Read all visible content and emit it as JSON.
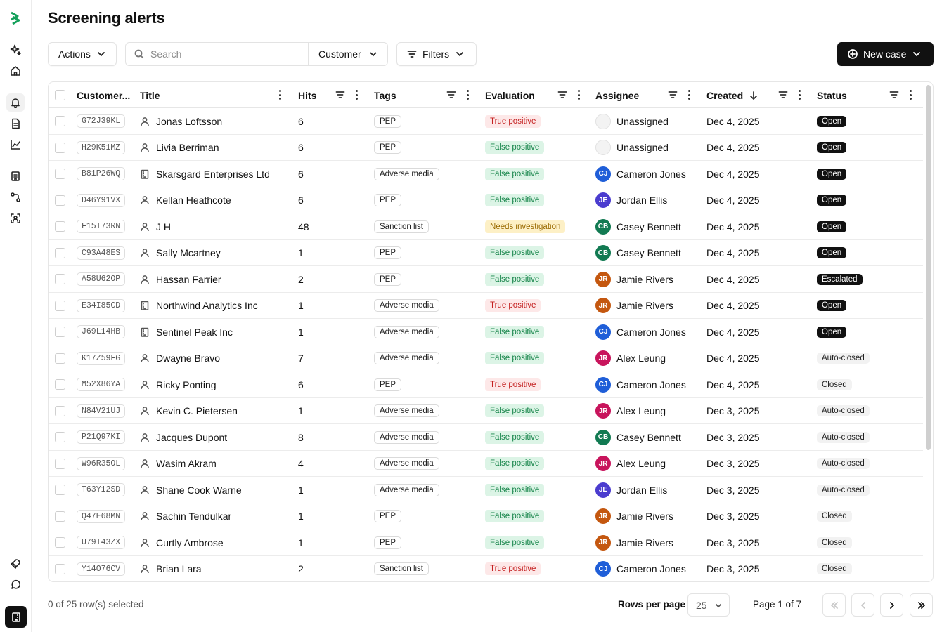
{
  "page": {
    "title": "Screening alerts"
  },
  "toolbar": {
    "actions_label": "Actions",
    "search_placeholder": "Search",
    "search_value": "",
    "customer_label": "Customer",
    "filters_label": "Filters",
    "new_case_label": "New case"
  },
  "sidebar": {
    "icons": [
      "logo-icon",
      "sparkle-icon",
      "home-icon",
      "bell-icon",
      "document-icon",
      "chart-icon",
      "building-id-icon",
      "workflow-icon",
      "scan-face-icon",
      "rocket-icon",
      "chat-icon",
      "organization-icon"
    ]
  },
  "table": {
    "columns": [
      "Customer...",
      "Title",
      "Hits",
      "Tags",
      "Evaluation",
      "Assignee",
      "Created",
      "Status"
    ],
    "rows": [
      {
        "id": "G72J39KL",
        "type": "person",
        "title": "Jonas Loftsson",
        "hits": "6",
        "tag": "PEP",
        "eval": "True positive",
        "eval_kind": "tp",
        "initials": "",
        "assignee": "Unassigned",
        "avatar_color": "",
        "created": "Dec 4, 2025",
        "status": "Open",
        "status_kind": "dark"
      },
      {
        "id": "H29K51MZ",
        "type": "person",
        "title": "Livia Berriman",
        "hits": "6",
        "tag": "PEP",
        "eval": "False positive",
        "eval_kind": "fp",
        "initials": "",
        "assignee": "Unassigned",
        "avatar_color": "",
        "created": "Dec 4, 2025",
        "status": "Open",
        "status_kind": "dark"
      },
      {
        "id": "B81P26WQ",
        "type": "company",
        "title": "Skarsgard Enterprises Ltd",
        "hits": "6",
        "tag": "Adverse media",
        "eval": "False positive",
        "eval_kind": "fp",
        "initials": "CJ",
        "assignee": "Cameron Jones",
        "avatar_color": "#1f5ed8",
        "created": "Dec 4, 2025",
        "status": "Open",
        "status_kind": "dark"
      },
      {
        "id": "D46Y91VX",
        "type": "person",
        "title": "Kellan Heathcote",
        "hits": "6",
        "tag": "PEP",
        "eval": "False positive",
        "eval_kind": "fp",
        "initials": "JE",
        "assignee": "Jordan Ellis",
        "avatar_color": "#4b3ccf",
        "created": "Dec 4, 2025",
        "status": "Open",
        "status_kind": "dark"
      },
      {
        "id": "F15T73RN",
        "type": "person",
        "title": "J H",
        "hits": "48",
        "tag": "Sanction list",
        "eval": "Needs investigation",
        "eval_kind": "ni",
        "initials": "CB",
        "assignee": "Casey Bennett",
        "avatar_color": "#127a52",
        "created": "Dec 4, 2025",
        "status": "Open",
        "status_kind": "dark"
      },
      {
        "id": "C93A48ES",
        "type": "person",
        "title": "Sally Mcartney",
        "hits": "1",
        "tag": "PEP",
        "eval": "False positive",
        "eval_kind": "fp",
        "initials": "CB",
        "assignee": "Casey Bennett",
        "avatar_color": "#127a52",
        "created": "Dec 4, 2025",
        "status": "Open",
        "status_kind": "dark"
      },
      {
        "id": "A58U62OP",
        "type": "person",
        "title": "Hassan Farrier",
        "hits": "2",
        "tag": "PEP",
        "eval": "False positive",
        "eval_kind": "fp",
        "initials": "JR",
        "assignee": "Jamie Rivers",
        "avatar_color": "#c4570f",
        "created": "Dec 4, 2025",
        "status": "Escalated",
        "status_kind": "dark"
      },
      {
        "id": "E34I85CD",
        "type": "company",
        "title": "Northwind Analytics Inc",
        "hits": "1",
        "tag": "Adverse media",
        "eval": "True positive",
        "eval_kind": "tp",
        "initials": "JR",
        "assignee": "Jamie Rivers",
        "avatar_color": "#c4570f",
        "created": "Dec 4, 2025",
        "status": "Open",
        "status_kind": "dark"
      },
      {
        "id": "J69L14HB",
        "type": "company",
        "title": "Sentinel Peak Inc",
        "hits": "1",
        "tag": "Adverse media",
        "eval": "False positive",
        "eval_kind": "fp",
        "initials": "CJ",
        "assignee": "Cameron Jones",
        "avatar_color": "#1f5ed8",
        "created": "Dec 4, 2025",
        "status": "Open",
        "status_kind": "dark"
      },
      {
        "id": "K17Z59FG",
        "type": "person",
        "title": "Dwayne Bravo",
        "hits": "7",
        "tag": "Adverse media",
        "eval": "False positive",
        "eval_kind": "fp",
        "initials": "JR",
        "assignee": "Alex Leung",
        "avatar_color": "#c8145c",
        "created": "Dec 4, 2025",
        "status": "Auto-closed",
        "status_kind": "light"
      },
      {
        "id": "M52X86YA",
        "type": "person",
        "title": "Ricky Ponting",
        "hits": "6",
        "tag": "PEP",
        "eval": "True positive",
        "eval_kind": "tp",
        "initials": "CJ",
        "assignee": "Cameron Jones",
        "avatar_color": "#1f5ed8",
        "created": "Dec 4, 2025",
        "status": "Closed",
        "status_kind": "light"
      },
      {
        "id": "N84V21UJ",
        "type": "person",
        "title": "Kevin C. Pietersen",
        "hits": "1",
        "tag": "Adverse media",
        "eval": "False positive",
        "eval_kind": "fp",
        "initials": "JR",
        "assignee": "Alex Leung",
        "avatar_color": "#c8145c",
        "created": "Dec 3, 2025",
        "status": "Auto-closed",
        "status_kind": "light"
      },
      {
        "id": "P21Q97KI",
        "type": "person",
        "title": "Jacques Dupont",
        "hits": "8",
        "tag": "Adverse media",
        "eval": "False positive",
        "eval_kind": "fp",
        "initials": "CB",
        "assignee": "Casey Bennett",
        "avatar_color": "#127a52",
        "created": "Dec 3, 2025",
        "status": "Auto-closed",
        "status_kind": "light"
      },
      {
        "id": "W96R35OL",
        "type": "person",
        "title": "Wasim Akram",
        "hits": "4",
        "tag": "Adverse media",
        "eval": "False positive",
        "eval_kind": "fp",
        "initials": "JR",
        "assignee": "Alex Leung",
        "avatar_color": "#c8145c",
        "created": "Dec 3, 2025",
        "status": "Auto-closed",
        "status_kind": "light"
      },
      {
        "id": "T63Y12SD",
        "type": "person",
        "title": "Shane Cook Warne",
        "hits": "1",
        "tag": "Adverse media",
        "eval": "False positive",
        "eval_kind": "fp",
        "initials": "JE",
        "assignee": "Jordan Ellis",
        "avatar_color": "#4b3ccf",
        "created": "Dec 3, 2025",
        "status": "Auto-closed",
        "status_kind": "light"
      },
      {
        "id": "Q47E68MN",
        "type": "person",
        "title": "Sachin Tendulkar",
        "hits": "1",
        "tag": "PEP",
        "eval": "False positive",
        "eval_kind": "fp",
        "initials": "JR",
        "assignee": "Jamie Rivers",
        "avatar_color": "#c4570f",
        "created": "Dec 3, 2025",
        "status": "Closed",
        "status_kind": "light"
      },
      {
        "id": "U79I43ZX",
        "type": "person",
        "title": "Curtly Ambrose",
        "hits": "1",
        "tag": "PEP",
        "eval": "False positive",
        "eval_kind": "fp",
        "initials": "JR",
        "assignee": "Jamie Rivers",
        "avatar_color": "#c4570f",
        "created": "Dec 3, 2025",
        "status": "Closed",
        "status_kind": "light"
      },
      {
        "id": "Y14O76CV",
        "type": "person",
        "title": "Brian Lara",
        "hits": "2",
        "tag": "Sanction list",
        "eval": "True positive",
        "eval_kind": "tp",
        "initials": "CJ",
        "assignee": "Cameron Jones",
        "avatar_color": "#1f5ed8",
        "created": "Dec 3, 2025",
        "status": "Closed",
        "status_kind": "light"
      }
    ]
  },
  "footer": {
    "selected_text": "0 of 25 row(s) selected",
    "rows_per_page_label": "Rows per page",
    "rows_per_page_value": "25",
    "page_info": "Page 1 of 7"
  },
  "colors": {
    "primary": "#111111",
    "true_positive": "#c42020",
    "false_positive": "#17854a",
    "needs_investigation": "#9a6a00",
    "brand": "#14a05a"
  }
}
